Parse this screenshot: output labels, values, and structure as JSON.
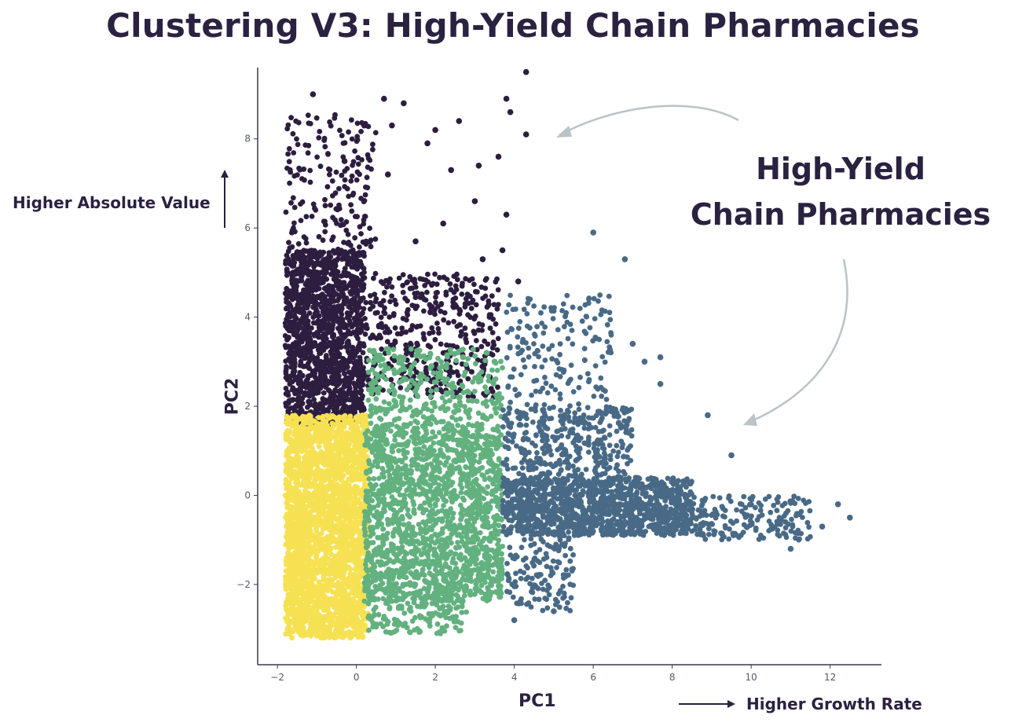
{
  "title": "Clustering V3: High-Yield Chain Pharmacies",
  "annotations": {
    "y_direction": "Higher Absolute Value",
    "x_direction": "Higher Growth Rate",
    "callout_line1": "High-Yield",
    "callout_line2": "Chain Pharmacies"
  },
  "chart_data": {
    "type": "scatter",
    "xlabel": "PC1",
    "ylabel": "PC2",
    "xlim": [
      -2.5,
      13.3
    ],
    "ylim": [
      -3.8,
      9.6
    ],
    "xticks": [
      -2,
      0,
      2,
      4,
      6,
      8,
      10,
      12
    ],
    "yticks": [
      -2,
      0,
      2,
      4,
      6,
      8
    ],
    "grid": false,
    "legend": "none",
    "series": [
      {
        "color": "#2d1e40",
        "regions": [
          {
            "x_range": [
              -1.8,
              0.2
            ],
            "y_range": [
              1.6,
              5.5
            ],
            "count": 1400
          },
          {
            "x_range": [
              -1.8,
              0.5
            ],
            "y_range": [
              5.5,
              8.6
            ],
            "count": 180
          },
          {
            "x_range": [
              0.2,
              3.6
            ],
            "y_range": [
              2.2,
              5.0
            ],
            "count": 420
          }
        ],
        "points": [
          [
            -1.1,
            9.0
          ],
          [
            0.7,
            8.9
          ],
          [
            1.2,
            8.8
          ],
          [
            3.8,
            8.9
          ],
          [
            4.3,
            9.5
          ],
          [
            2.6,
            8.4
          ],
          [
            3.9,
            8.6
          ],
          [
            0.9,
            8.3
          ],
          [
            4.3,
            8.1
          ],
          [
            3.6,
            7.6
          ],
          [
            3.1,
            7.4
          ],
          [
            0.8,
            7.2
          ],
          [
            2.4,
            7.3
          ],
          [
            3.0,
            6.6
          ],
          [
            3.8,
            6.3
          ],
          [
            2.2,
            6.1
          ],
          [
            1.5,
            5.7
          ],
          [
            3.2,
            5.3
          ],
          [
            2.0,
            8.2
          ],
          [
            0.2,
            8.3
          ],
          [
            1.8,
            7.9
          ],
          [
            3.7,
            5.5
          ],
          [
            4.1,
            4.8
          ],
          [
            -0.3,
            7.5
          ]
        ]
      },
      {
        "color": "#f6e153",
        "regions": [
          {
            "x_range": [
              -1.8,
              0.3
            ],
            "y_range": [
              -3.2,
              1.8
            ],
            "count": 2600
          }
        ],
        "points": []
      },
      {
        "color": "#62b17f",
        "regions": [
          {
            "x_range": [
              0.2,
              3.7
            ],
            "y_range": [
              -2.4,
              1.6
            ],
            "count": 1700
          },
          {
            "x_range": [
              0.3,
              3.7
            ],
            "y_range": [
              1.6,
              3.3
            ],
            "count": 300
          },
          {
            "x_range": [
              0.3,
              2.8
            ],
            "y_range": [
              -3.1,
              -2.3
            ],
            "count": 140
          }
        ],
        "points": [
          [
            3.3,
            3.2
          ],
          [
            3.5,
            3.0
          ],
          [
            2.7,
            3.1
          ],
          [
            1.9,
            2.9
          ]
        ]
      },
      {
        "color": "#486a86",
        "regions": [
          {
            "x_range": [
              3.7,
              8.5
            ],
            "y_range": [
              -0.9,
              0.4
            ],
            "count": 1200
          },
          {
            "x_range": [
              8.5,
              11.5
            ],
            "y_range": [
              -1.0,
              0.0
            ],
            "count": 180
          },
          {
            "x_range": [
              3.7,
              7.0
            ],
            "y_range": [
              0.4,
              2.0
            ],
            "count": 380
          },
          {
            "x_range": [
              3.8,
              6.5
            ],
            "y_range": [
              2.0,
              4.5
            ],
            "count": 170
          },
          {
            "x_range": [
              3.8,
              5.5
            ],
            "y_range": [
              -2.6,
              -0.9
            ],
            "count": 140
          }
        ],
        "points": [
          [
            6.8,
            5.3
          ],
          [
            7.0,
            3.4
          ],
          [
            7.3,
            3.0
          ],
          [
            7.7,
            3.1
          ],
          [
            9.5,
            0.9
          ],
          [
            12.5,
            -0.5
          ],
          [
            12.2,
            -0.2
          ],
          [
            11.8,
            -0.7
          ],
          [
            11.0,
            -1.2
          ],
          [
            5.0,
            -2.6
          ],
          [
            4.0,
            -2.8
          ],
          [
            6.0,
            5.9
          ],
          [
            7.7,
            2.5
          ],
          [
            8.9,
            1.8
          ]
        ]
      }
    ]
  }
}
